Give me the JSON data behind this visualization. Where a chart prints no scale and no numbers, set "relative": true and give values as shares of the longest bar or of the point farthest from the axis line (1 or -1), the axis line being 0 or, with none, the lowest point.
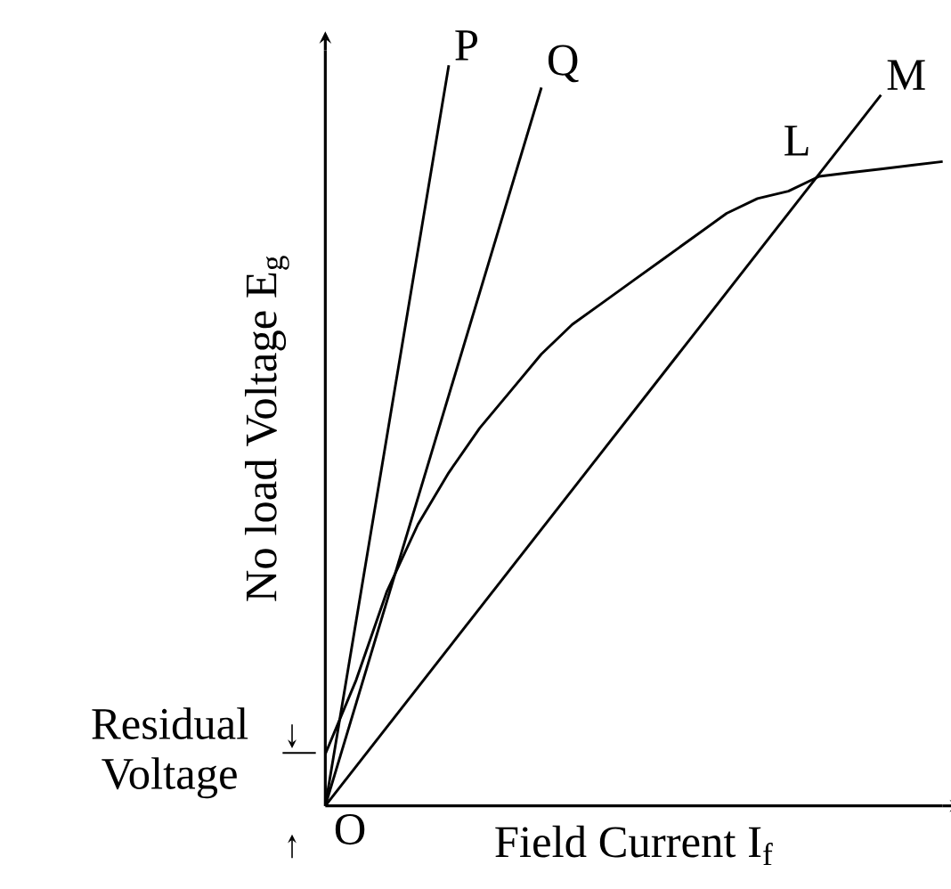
{
  "chart_data": {
    "type": "line",
    "relative": true,
    "xlabel": "Field Current I$_{f}$",
    "ylabel": "No load Voltage E$_{g}$",
    "categories": [
      null,
      null,
      null,
      null,
      null,
      null,
      null,
      null,
      null,
      null,
      null,
      null,
      null,
      null,
      null,
      null,
      null,
      null,
      null,
      null,
      null
    ],
    "marker": "none",
    "line_style": "solid",
    "series": [
      {
        "name": "P",
        "color": "#000000",
        "values": [
          0,
          null,
          null,
          null,
          1,
          null,
          null,
          null,
          null,
          null,
          null,
          null,
          null,
          null,
          null,
          null,
          null,
          null,
          null,
          null,
          null
        ]
      },
      {
        "name": "Q",
        "color": "#000000",
        "values": [
          0,
          null,
          null,
          null,
          null,
          null,
          null,
          0.97,
          null,
          null,
          null,
          null,
          null,
          null,
          null,
          null,
          null,
          null,
          null,
          null,
          null
        ]
      },
      {
        "name": "M",
        "color": "#000000",
        "values": [
          0,
          null,
          null,
          null,
          null,
          null,
          null,
          null,
          null,
          null,
          null,
          null,
          null,
          null,
          null,
          null,
          null,
          null,
          0.96,
          null,
          null
        ]
      },
      {
        "color": "#000000",
        "values": [
          0.07,
          0.17,
          0.29,
          0.38,
          0.45,
          0.51,
          0.56,
          0.61,
          0.65,
          0.68,
          0.71,
          0.74,
          0.77,
          0.8,
          0.82,
          0.83,
          0.85,
          0.855,
          0.86,
          0.865,
          0.87
        ]
      }
    ],
    "annotations": [
      "L",
      "O",
      "Residual Voltage"
    ]
  }
}
